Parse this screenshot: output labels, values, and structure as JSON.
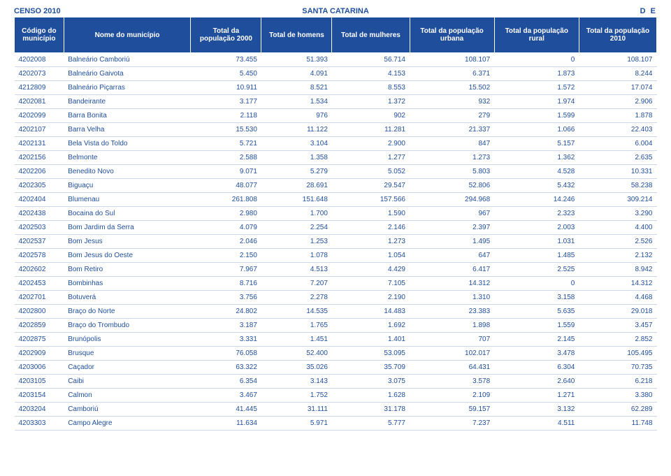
{
  "page_header": {
    "left": "CENSO 2010",
    "center": "SANTA CATARINA",
    "right": "D  E"
  },
  "colors": {
    "brand": "#1f4e9c",
    "header_text": "#ffffff",
    "row_border": "#d0d7e8",
    "background": "#ffffff"
  },
  "table": {
    "columns": [
      "Código do município",
      "Nome do município",
      "Total da população 2000",
      "Total de homens",
      "Total de mulheres",
      "Total da população urbana",
      "Total da população rural",
      "Total da população 2010"
    ],
    "rows": [
      [
        "4202008",
        "Balneário Camboriú",
        "73.455",
        "51.393",
        "56.714",
        "108.107",
        "0",
        "108.107"
      ],
      [
        "4202073",
        "Balneário Gaivota",
        "5.450",
        "4.091",
        "4.153",
        "6.371",
        "1.873",
        "8.244"
      ],
      [
        "4212809",
        "Balneário Piçarras",
        "10.911",
        "8.521",
        "8.553",
        "15.502",
        "1.572",
        "17.074"
      ],
      [
        "4202081",
        "Bandeirante",
        "3.177",
        "1.534",
        "1.372",
        "932",
        "1.974",
        "2.906"
      ],
      [
        "4202099",
        "Barra Bonita",
        "2.118",
        "976",
        "902",
        "279",
        "1.599",
        "1.878"
      ],
      [
        "4202107",
        "Barra Velha",
        "15.530",
        "11.122",
        "11.281",
        "21.337",
        "1.066",
        "22.403"
      ],
      [
        "4202131",
        "Bela Vista do Toldo",
        "5.721",
        "3.104",
        "2.900",
        "847",
        "5.157",
        "6.004"
      ],
      [
        "4202156",
        "Belmonte",
        "2.588",
        "1.358",
        "1.277",
        "1.273",
        "1.362",
        "2.635"
      ],
      [
        "4202206",
        "Benedito Novo",
        "9.071",
        "5.279",
        "5.052",
        "5.803",
        "4.528",
        "10.331"
      ],
      [
        "4202305",
        "Biguaçu",
        "48.077",
        "28.691",
        "29.547",
        "52.806",
        "5.432",
        "58.238"
      ],
      [
        "4202404",
        "Blumenau",
        "261.808",
        "151.648",
        "157.566",
        "294.968",
        "14.246",
        "309.214"
      ],
      [
        "4202438",
        "Bocaina do Sul",
        "2.980",
        "1.700",
        "1.590",
        "967",
        "2.323",
        "3.290"
      ],
      [
        "4202503",
        "Bom Jardim da Serra",
        "4.079",
        "2.254",
        "2.146",
        "2.397",
        "2.003",
        "4.400"
      ],
      [
        "4202537",
        "Bom Jesus",
        "2.046",
        "1.253",
        "1.273",
        "1.495",
        "1.031",
        "2.526"
      ],
      [
        "4202578",
        "Bom Jesus do Oeste",
        "2.150",
        "1.078",
        "1.054",
        "647",
        "1.485",
        "2.132"
      ],
      [
        "4202602",
        "Bom Retiro",
        "7.967",
        "4.513",
        "4.429",
        "6.417",
        "2.525",
        "8.942"
      ],
      [
        "4202453",
        "Bombinhas",
        "8.716",
        "7.207",
        "7.105",
        "14.312",
        "0",
        "14.312"
      ],
      [
        "4202701",
        "Botuverá",
        "3.756",
        "2.278",
        "2.190",
        "1.310",
        "3.158",
        "4.468"
      ],
      [
        "4202800",
        "Braço do Norte",
        "24.802",
        "14.535",
        "14.483",
        "23.383",
        "5.635",
        "29.018"
      ],
      [
        "4202859",
        "Braço do Trombudo",
        "3.187",
        "1.765",
        "1.692",
        "1.898",
        "1.559",
        "3.457"
      ],
      [
        "4202875",
        "Brunópolis",
        "3.331",
        "1.451",
        "1.401",
        "707",
        "2.145",
        "2.852"
      ],
      [
        "4202909",
        "Brusque",
        "76.058",
        "52.400",
        "53.095",
        "102.017",
        "3.478",
        "105.495"
      ],
      [
        "4203006",
        "Caçador",
        "63.322",
        "35.026",
        "35.709",
        "64.431",
        "6.304",
        "70.735"
      ],
      [
        "4203105",
        "Caibi",
        "6.354",
        "3.143",
        "3.075",
        "3.578",
        "2.640",
        "6.218"
      ],
      [
        "4203154",
        "Calmon",
        "3.467",
        "1.752",
        "1.628",
        "2.109",
        "1.271",
        "3.380"
      ],
      [
        "4203204",
        "Camboriú",
        "41.445",
        "31.111",
        "31.178",
        "59.157",
        "3.132",
        "62.289"
      ],
      [
        "4203303",
        "Campo Alegre",
        "11.634",
        "5.971",
        "5.777",
        "7.237",
        "4.511",
        "11.748"
      ]
    ]
  }
}
